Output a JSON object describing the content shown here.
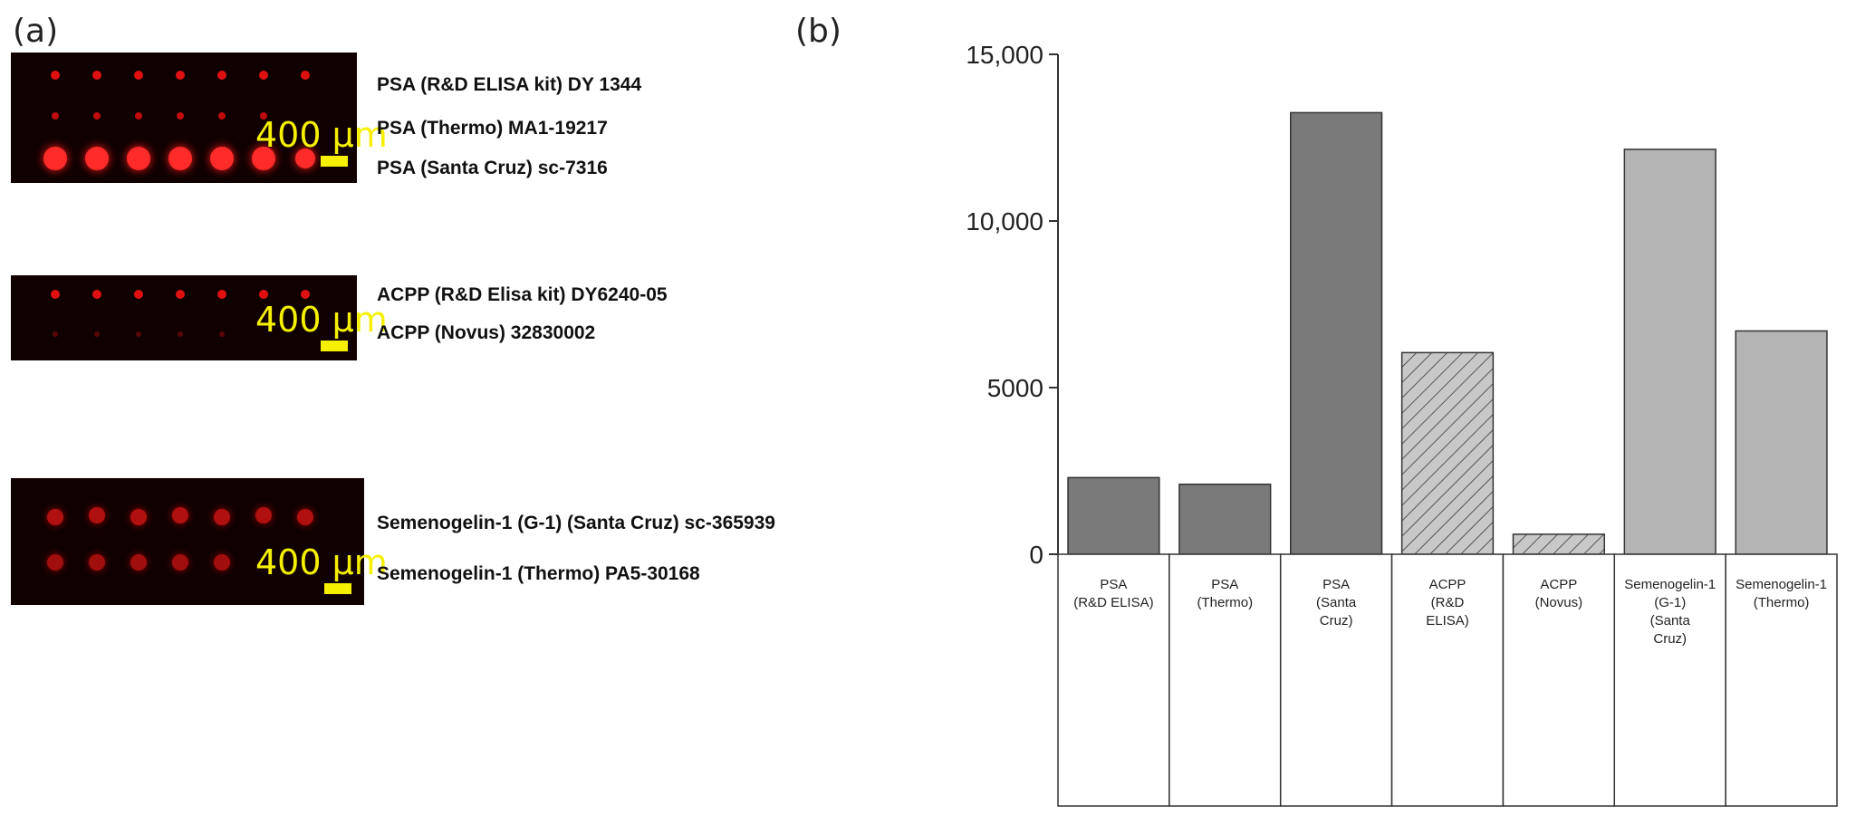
{
  "panel_a": {
    "label": "(a)",
    "groups": [
      {
        "scale_label": "400 µm",
        "rows": [
          "PSA (R&D ELISA kit) DY 1344",
          "PSA (Thermo) MA1-19217",
          "PSA (Santa Cruz) sc-7316"
        ]
      },
      {
        "scale_label": "400 µm",
        "rows": [
          "ACPP (R&D Elisa kit) DY6240-05",
          "ACPP (Novus) 32830002"
        ]
      },
      {
        "scale_label": "400 µm",
        "rows": [
          "Semenogelin-1 (G-1) (Santa Cruz) sc-365939",
          "Semenogelin-1 (Thermo) PA5-30168"
        ]
      }
    ]
  },
  "panel_b": {
    "label": "(b)"
  },
  "chart_data": {
    "type": "bar",
    "categories": [
      [
        "PSA",
        "(R&D ELISA)"
      ],
      [
        "PSA",
        "(Thermo)"
      ],
      [
        "PSA",
        "(Santa",
        "Cruz)"
      ],
      [
        "ACPP",
        "(R&D",
        "ELISA)"
      ],
      [
        "ACPP",
        "(Novus)"
      ],
      [
        "Semenogelin-1",
        "(G-1)",
        "(Santa",
        "Cruz)"
      ],
      [
        "Semenogelin-1",
        "(Thermo)"
      ]
    ],
    "values": [
      2300,
      2100,
      13250,
      6050,
      600,
      12150,
      6700
    ],
    "fills": [
      "solid-dark",
      "solid-dark",
      "solid-dark",
      "hatched",
      "hatched",
      "solid-light",
      "solid-light"
    ],
    "ylim": [
      0,
      15000
    ],
    "yticks": [
      0,
      5000,
      10000,
      15000
    ],
    "ytick_labels": [
      "0",
      "5000",
      "10,000",
      "15,000"
    ],
    "title": "",
    "xlabel": "",
    "ylabel": "",
    "grid": false,
    "colors": {
      "dark": "#7a7a7a",
      "light": "#b4b4b4",
      "hatch_bg": "#c8c8c8",
      "hatch_line": "#555555",
      "edge": "#333333"
    }
  }
}
